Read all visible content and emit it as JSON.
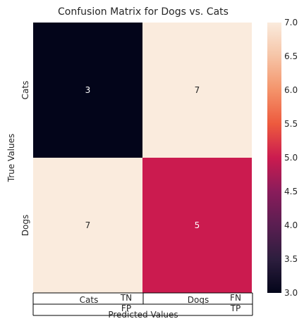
{
  "chart_data": {
    "type": "heatmap",
    "title": "Confusion Matrix for Dogs vs. Cats",
    "xlabel": "Predicted Values",
    "ylabel": "True Values",
    "x_categories": [
      "Cats",
      "Dogs"
    ],
    "y_categories": [
      "Cats",
      "Dogs"
    ],
    "values": [
      [
        3,
        7
      ],
      [
        7,
        5
      ]
    ],
    "colorbar": {
      "range": [
        3.0,
        7.0
      ],
      "ticks": [
        "3.0",
        "3.5",
        "4.0",
        "4.5",
        "5.0",
        "5.5",
        "6.0",
        "6.5",
        "7.0"
      ],
      "colormap": "rocket"
    },
    "table": {
      "rows": [
        [
          "Cats",
          "TN",
          "Dogs",
          "FN"
        ],
        [
          "",
          "FP",
          "",
          "TP"
        ]
      ]
    },
    "grid": false,
    "legend": "colorbar-right"
  }
}
